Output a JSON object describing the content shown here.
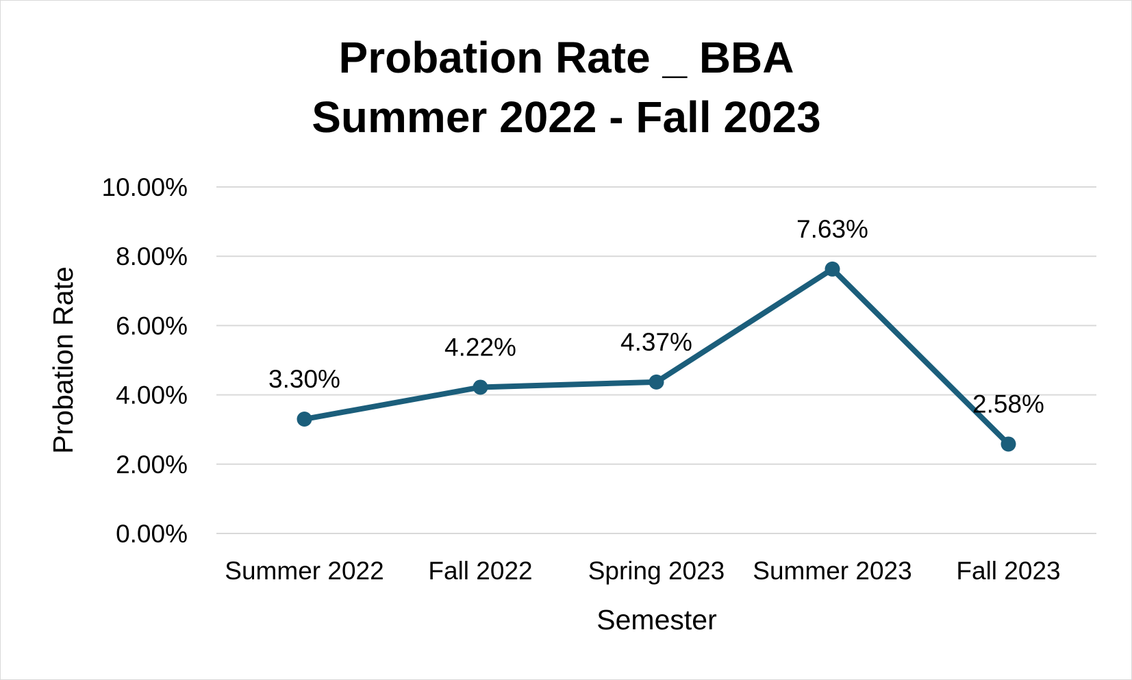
{
  "chart_data": {
    "type": "line",
    "title": "Probation Rate _ BBA",
    "subtitle": "Summer 2022 - Fall 2023",
    "xlabel": "Semester",
    "ylabel": "Probation Rate",
    "categories": [
      "Summer 2022",
      "Fall 2022",
      "Spring 2023",
      "Summer 2023",
      "Fall 2023"
    ],
    "series": [
      {
        "values": [
          3.3,
          4.22,
          4.37,
          7.63,
          2.58
        ],
        "data_labels": [
          "3.30%",
          "4.22%",
          "4.37%",
          "7.63%",
          "2.58%"
        ],
        "color": "#1b5e7b"
      }
    ],
    "ylim": [
      0,
      10
    ],
    "yticks": [
      0,
      2,
      4,
      6,
      8,
      10
    ],
    "ytick_labels": [
      "0.00%",
      "2.00%",
      "4.00%",
      "6.00%",
      "8.00%",
      "10.00%"
    ],
    "grid": true,
    "legend": "none",
    "colors": {
      "line": "#1b5e7b",
      "gridline": "#d9d9d9",
      "border": "#d9d9d9"
    }
  }
}
